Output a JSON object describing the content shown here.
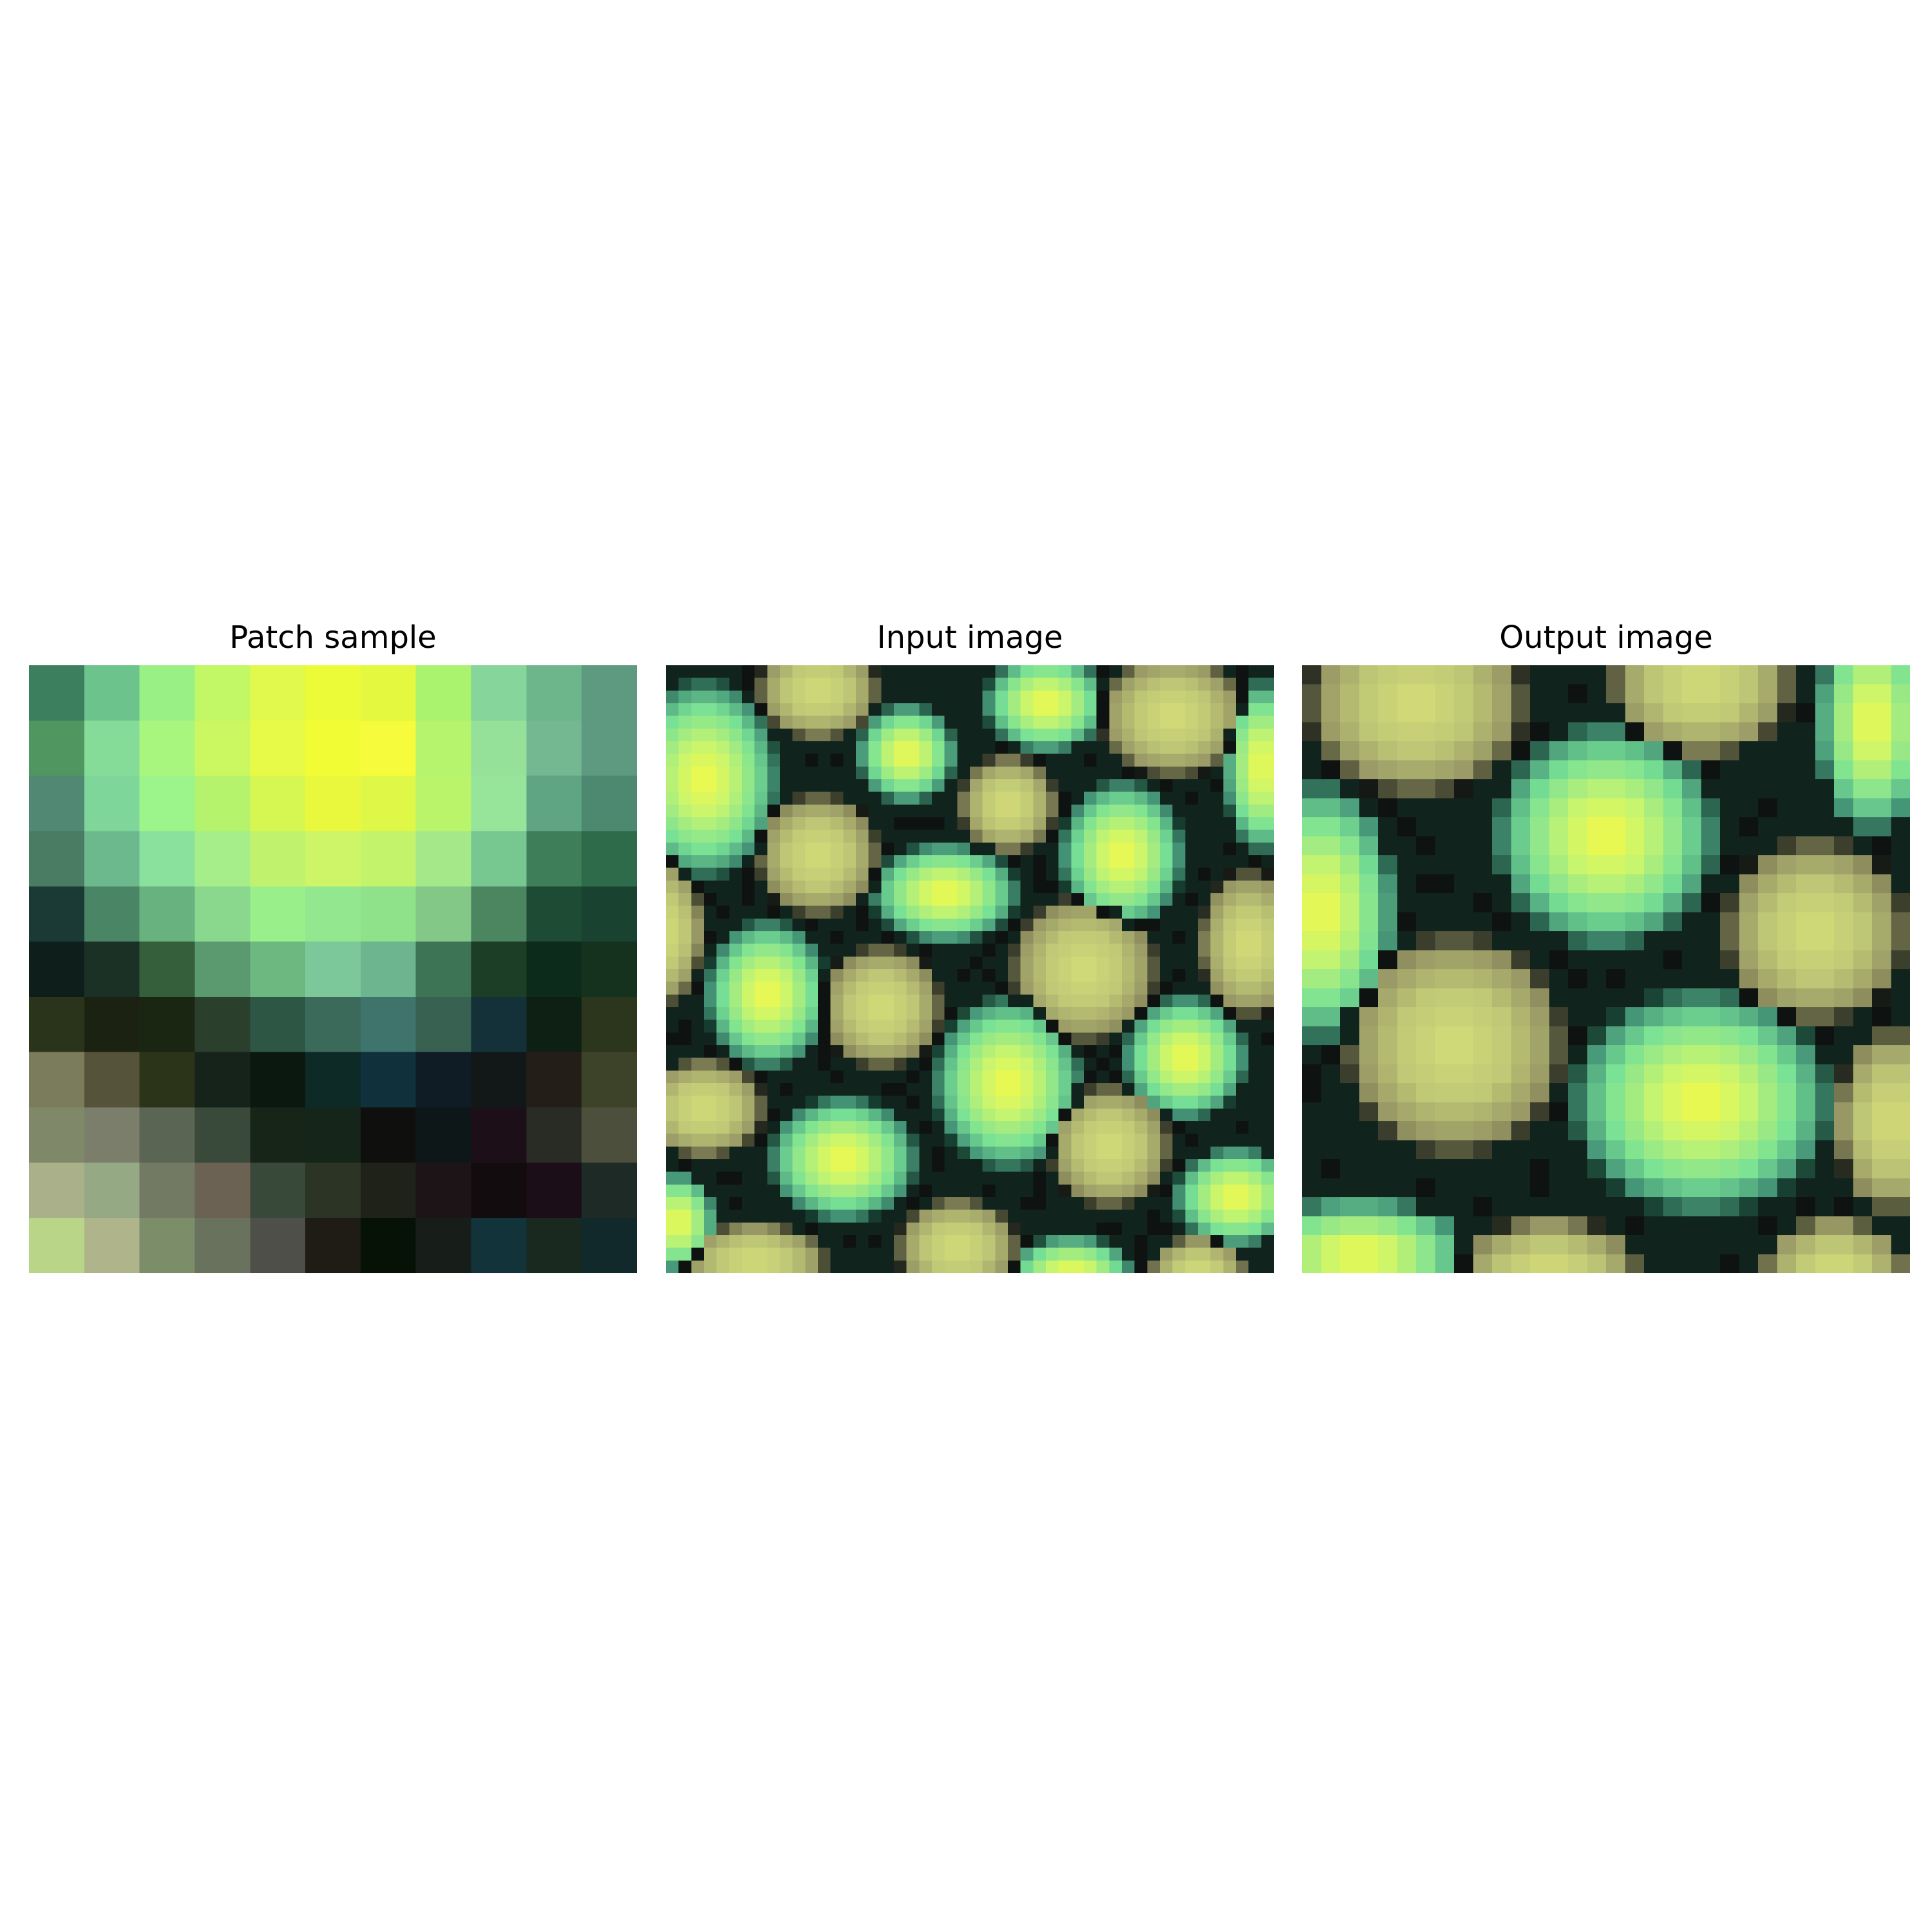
{
  "figure": {
    "panels": [
      {
        "title": "Patch sample",
        "pixels": [
          [
            "#3b7f5e",
            "#6cc48c",
            "#99f085",
            "#c2f765",
            "#e1f84c",
            "#ecfb38",
            "#e3f83e",
            "#a9f36f",
            "#86d59a",
            "#6db58b",
            "#5d9a7f"
          ],
          [
            "#4f9660",
            "#85dc98",
            "#a9f67e",
            "#cbf860",
            "#e7fa47",
            "#f2fc35",
            "#f6fc3c",
            "#b7f46e",
            "#95e19a",
            "#74b892",
            "#5d9a7f"
          ],
          [
            "#518874",
            "#7ed69a",
            "#9cf58a",
            "#b5f36c",
            "#d6f652",
            "#e9f83c",
            "#dff848",
            "#b9f46b",
            "#97e59b",
            "#5fa483",
            "#4d8970"
          ],
          [
            "#4a7c63",
            "#6bb98d",
            "#8ae09d",
            "#a5ee89",
            "#c1f26d",
            "#cef467",
            "#c2f36b",
            "#a5e88a",
            "#76c890",
            "#3e7f5a",
            "#2d6b4b"
          ],
          [
            "#1b3a35",
            "#4a8566",
            "#68b27f",
            "#8ad88e",
            "#99ef8a",
            "#93e78e",
            "#8fe289",
            "#84c888",
            "#4b8660",
            "#1e4b34",
            "#1a4230"
          ],
          [
            "#0e1f1b",
            "#1c3125",
            "#345f3a",
            "#5b9a6f",
            "#6db881",
            "#7dc89a",
            "#6db58e",
            "#3e7456",
            "#1d3e26",
            "#0c2b1a",
            "#14321e"
          ],
          [
            "#2a341a",
            "#1c2212",
            "#1b2612",
            "#2b3f2d",
            "#2d5744",
            "#3b6a5a",
            "#3f746d",
            "#386152",
            "#14313a",
            "#0e1f13",
            "#2b361c"
          ],
          [
            "#7b7c5b",
            "#555339",
            "#2b3419",
            "#16231b",
            "#0b180f",
            "#0d2a26",
            "#10303b",
            "#0f1c25",
            "#121818",
            "#231f18",
            "#3c4329"
          ],
          [
            "#80886a",
            "#7b7e6b",
            "#5a6553",
            "#3a4a3a",
            "#172519",
            "#152519",
            "#0f0f0e",
            "#0e1718",
            "#1c0f17",
            "#292b25",
            "#4c4f3b"
          ],
          [
            "#aab18a",
            "#95a985",
            "#737a63",
            "#6c6254",
            "#38493a",
            "#2c3425",
            "#1e2218",
            "#1d1417",
            "#130c0e",
            "#1c0e18",
            "#1d2a25"
          ],
          [
            "#b9d688",
            "#afb48b",
            "#7b8d69",
            "#69725d",
            "#4d4f48",
            "#1e1c14",
            "#071207",
            "#171e1a",
            "#12333a",
            "#19291f",
            "#11292a"
          ]
        ]
      },
      {
        "title": "Input image",
        "pixels": []
      },
      {
        "title": "Output image",
        "pixels": []
      }
    ]
  }
}
